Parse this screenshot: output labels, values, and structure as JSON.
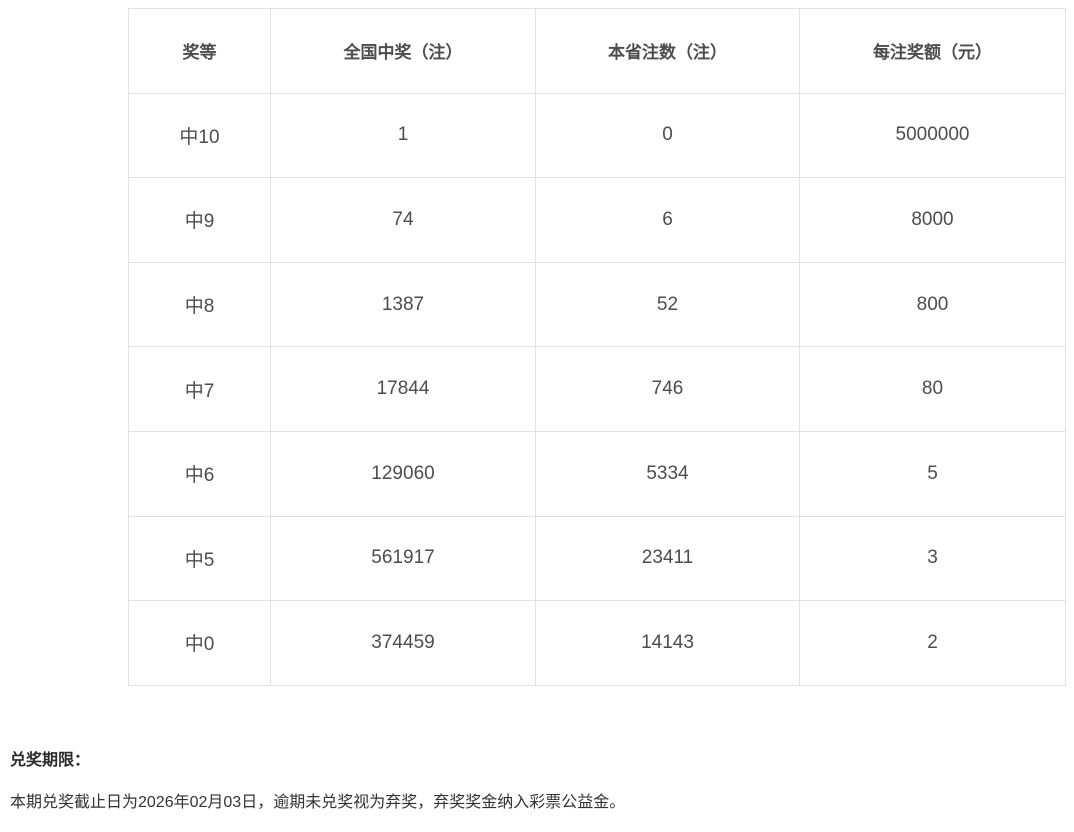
{
  "table": {
    "headers": [
      "奖等",
      "全国中奖（注）",
      "本省注数（注）",
      "每注奖额（元）"
    ],
    "rows": [
      [
        "中10",
        "1",
        "0",
        "5000000"
      ],
      [
        "中9",
        "74",
        "6",
        "8000"
      ],
      [
        "中8",
        "1387",
        "52",
        "800"
      ],
      [
        "中7",
        "17844",
        "746",
        "80"
      ],
      [
        "中6",
        "129060",
        "5334",
        "5"
      ],
      [
        "中5",
        "561917",
        "23411",
        "3"
      ],
      [
        "中0",
        "374459",
        "14143",
        "2"
      ]
    ]
  },
  "footer": {
    "title": "兑奖期限：",
    "note": "本期兑奖截止日为2026年02月03日，逾期未兑奖视为弃奖，弃奖奖金纳入彩票公益金。"
  },
  "colors": {
    "table_border": "#e1e1e1",
    "table_text": "#4d4d4d",
    "footer_text": "#333333",
    "background": "#ffffff"
  }
}
